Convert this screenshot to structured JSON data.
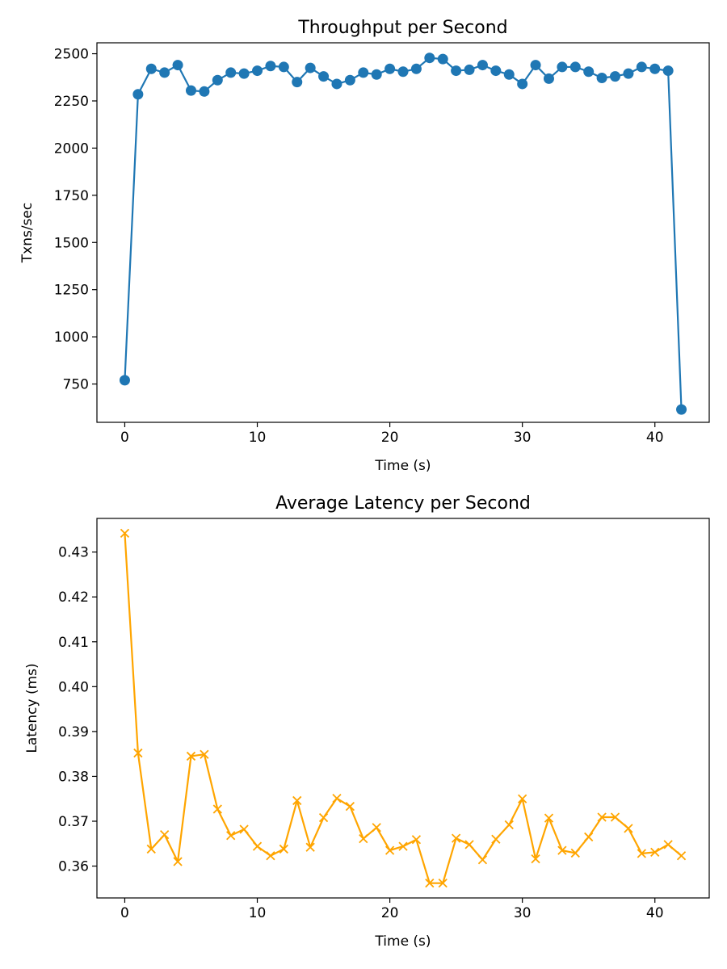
{
  "chart_data": [
    {
      "type": "line",
      "title": "Throughput per Second",
      "xlabel": "Time (s)",
      "ylabel": "Txns/sec",
      "xlim": [
        -2.1,
        44.1
      ],
      "ylim": [
        547,
        2558
      ],
      "xticks": [
        0,
        10,
        20,
        30,
        40
      ],
      "yticks": [
        750,
        1000,
        1250,
        1500,
        1750,
        2000,
        2250,
        2500
      ],
      "grid": false,
      "marker": "circle",
      "color": "#1f77b4",
      "series": [
        {
          "x": [
            0,
            1,
            2,
            3,
            4,
            5,
            6,
            7,
            8,
            9,
            10,
            11,
            12,
            13,
            14,
            15,
            16,
            17,
            18,
            19,
            20,
            21,
            22,
            23,
            24,
            25,
            26,
            27,
            28,
            29,
            30,
            31,
            32,
            33,
            34,
            35,
            36,
            37,
            38,
            39,
            40,
            41,
            42
          ],
          "values": [
            770,
            2285,
            2420,
            2400,
            2440,
            2305,
            2300,
            2360,
            2400,
            2395,
            2410,
            2435,
            2430,
            2350,
            2425,
            2380,
            2340,
            2360,
            2400,
            2390,
            2420,
            2405,
            2420,
            2478,
            2472,
            2410,
            2415,
            2440,
            2410,
            2390,
            2340,
            2440,
            2368,
            2430,
            2430,
            2405,
            2372,
            2380,
            2395,
            2430,
            2420,
            2410,
            615
          ]
        }
      ]
    },
    {
      "type": "line",
      "title": "Average Latency per Second",
      "xlabel": "Time (s)",
      "ylabel": "Latency (ms)",
      "xlim": [
        -2.1,
        44.1
      ],
      "ylim": [
        0.3529,
        0.4375
      ],
      "xticks": [
        0,
        10,
        20,
        30,
        40
      ],
      "yticks": [
        0.36,
        0.37,
        0.38,
        0.39,
        0.4,
        0.41,
        0.42,
        0.43
      ],
      "ytick_labels": [
        "0.36",
        "0.37",
        "0.38",
        "0.39",
        "0.40",
        "0.41",
        "0.42",
        "0.43"
      ],
      "grid": false,
      "marker": "x",
      "color": "#ffa500",
      "series": [
        {
          "x": [
            0,
            1,
            2,
            3,
            4,
            5,
            6,
            7,
            8,
            9,
            10,
            11,
            12,
            13,
            14,
            15,
            16,
            17,
            18,
            19,
            20,
            21,
            22,
            23,
            24,
            25,
            26,
            27,
            28,
            29,
            30,
            31,
            32,
            33,
            34,
            35,
            36,
            37,
            38,
            39,
            40,
            41,
            42
          ],
          "values": [
            0.4342,
            0.3852,
            0.3638,
            0.367,
            0.361,
            0.3845,
            0.3849,
            0.3727,
            0.3668,
            0.3682,
            0.3644,
            0.3623,
            0.3638,
            0.3746,
            0.3642,
            0.3708,
            0.3751,
            0.3733,
            0.3661,
            0.3686,
            0.3635,
            0.3644,
            0.3659,
            0.3562,
            0.3562,
            0.3662,
            0.3648,
            0.3614,
            0.366,
            0.3692,
            0.375,
            0.3616,
            0.3707,
            0.3635,
            0.3629,
            0.3665,
            0.3709,
            0.3709,
            0.3684,
            0.3628,
            0.3631,
            0.3648,
            0.3623
          ]
        }
      ]
    }
  ]
}
